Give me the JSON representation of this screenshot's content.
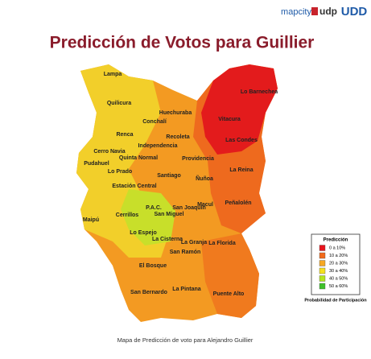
{
  "header": {
    "logos": [
      "mapcity",
      "udp",
      "UDD"
    ],
    "title": "Predicción de Votos para Guillier"
  },
  "map": {
    "labels": [
      "Lampa",
      "Quilicura",
      "Huechuraba",
      "Conchalí",
      "Lo Barnechea",
      "Vitacura",
      "Renca",
      "Recoleta",
      "Independencia",
      "Las Condes",
      "Cerro Navia",
      "Quinta Normal",
      "Providencia",
      "Pudahuel",
      "Lo Prado",
      "Santiago",
      "Ñuñoa",
      "La Reina",
      "Estación Central",
      "Peñalolén",
      "Macul",
      "P.A.C.",
      "San Joaquín",
      "San Miguel",
      "Cerrillos",
      "Maipú",
      "Lo Espejo",
      "La Cisterna",
      "La Granja",
      "La Florida",
      "San Ramón",
      "El Bosque",
      "San Bernardo",
      "La Pintana",
      "Puente Alto"
    ]
  },
  "legend": {
    "title": "Predicción",
    "items": [
      {
        "label": "0 a 10%",
        "color": "#e8141c"
      },
      {
        "label": "10 a 20%",
        "color": "#f26a1b"
      },
      {
        "label": "20 a 30%",
        "color": "#f7a823"
      },
      {
        "label": "30 a 40%",
        "color": "#f5e11e"
      },
      {
        "label": "40 a 50%",
        "color": "#b5e61d"
      },
      {
        "label": "50 a 60%",
        "color": "#3ec12a"
      }
    ],
    "note": "Probabilidad de Participación"
  },
  "caption": "Mapa de Predicción de voto para Alejandro Guillier"
}
